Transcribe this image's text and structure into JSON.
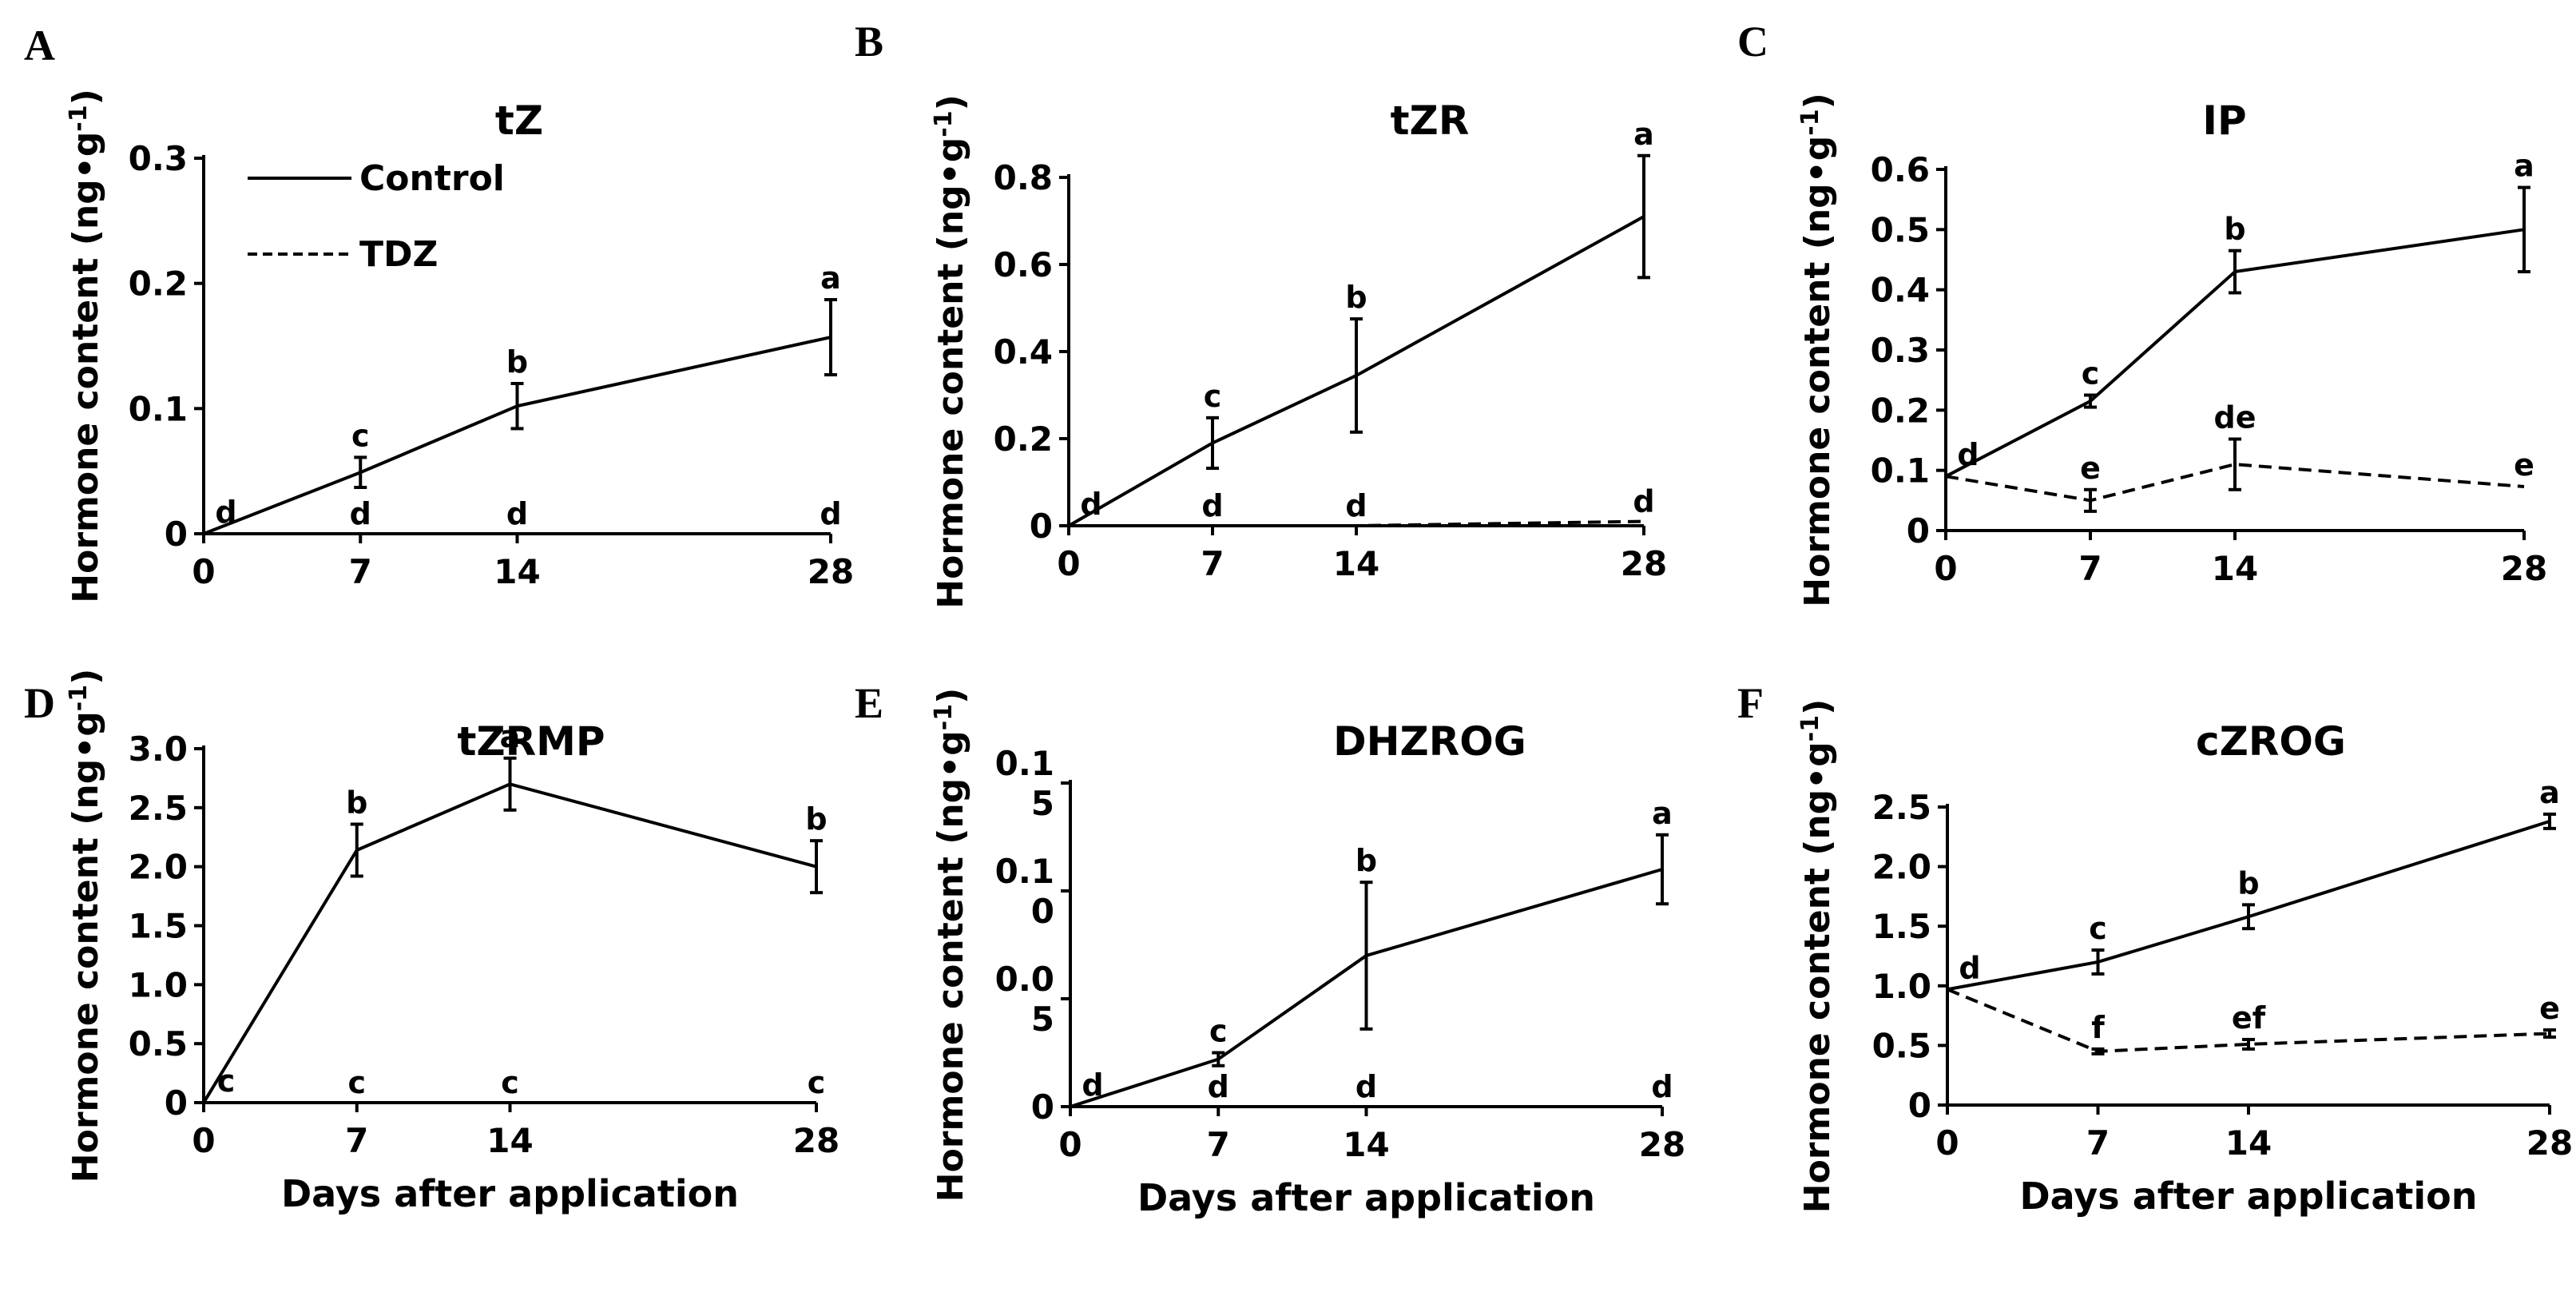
{
  "chart_data": [
    {
      "type": "line",
      "panel": "A",
      "title": "tZ",
      "ylabel": "Hormone content (ng•g⁻¹)",
      "xlabel": "",
      "x": [
        0,
        7,
        14,
        28
      ],
      "xticks": [
        "0",
        "7",
        "14",
        "28"
      ],
      "ylim": [
        0,
        0.3
      ],
      "yticks": [
        "0",
        "0.1",
        "0.2",
        "0.3"
      ],
      "legend": [
        "Control",
        "TDZ"
      ],
      "series": [
        {
          "name": "Control",
          "style": "solid",
          "values": [
            0,
            0.049,
            0.102,
            0.157
          ],
          "errors": [
            0,
            0.012,
            0.018,
            0.03
          ],
          "sig": [
            "d",
            "c",
            "b",
            "a"
          ]
        },
        {
          "name": "TDZ",
          "style": "dashed",
          "values": [
            0,
            0,
            0,
            0
          ],
          "errors": [
            0,
            0,
            0,
            0
          ],
          "sig": [
            "",
            "d",
            "d",
            "d"
          ]
        }
      ]
    },
    {
      "type": "line",
      "panel": "B",
      "title": "tZR",
      "ylabel": "Hormone content (ng•g⁻¹)",
      "xlabel": "",
      "x": [
        0,
        7,
        14,
        28
      ],
      "xticks": [
        "0",
        "7",
        "14",
        "28"
      ],
      "ylim": [
        0,
        0.8
      ],
      "yticks": [
        "0",
        "0.2",
        "0.4",
        "0.6",
        "0.8"
      ],
      "series": [
        {
          "name": "Control",
          "style": "solid",
          "values": [
            0,
            0.19,
            0.345,
            0.71
          ],
          "errors": [
            0,
            0.058,
            0.13,
            0.14
          ],
          "sig": [
            "d",
            "c",
            "b",
            "a"
          ]
        },
        {
          "name": "TDZ",
          "style": "dashed",
          "values": [
            0,
            0,
            0,
            0.01
          ],
          "errors": [
            0,
            0,
            0,
            0
          ],
          "sig": [
            "",
            "d",
            "d",
            "d"
          ]
        }
      ]
    },
    {
      "type": "line",
      "panel": "C",
      "title": "IP",
      "ylabel": "Hormone content (ng•g⁻¹)",
      "xlabel": "",
      "x": [
        0,
        7,
        14,
        28
      ],
      "xticks": [
        "0",
        "7",
        "14",
        "28"
      ],
      "ylim": [
        0,
        0.6
      ],
      "yticks": [
        "0",
        "0.1",
        "0.2",
        "0.3",
        "0.4",
        "0.5",
        "0.6"
      ],
      "series": [
        {
          "name": "Control",
          "style": "solid",
          "values": [
            0.09,
            0.215,
            0.43,
            0.5
          ],
          "errors": [
            0,
            0.01,
            0.035,
            0.07
          ],
          "sig": [
            "d",
            "c",
            "b",
            "a"
          ]
        },
        {
          "name": "TDZ",
          "style": "dashed",
          "values": [
            0.09,
            0.05,
            0.11,
            0.073
          ],
          "errors": [
            0,
            0.018,
            0.042,
            0
          ],
          "sig": [
            "",
            "e",
            "de",
            "e"
          ]
        }
      ]
    },
    {
      "type": "line",
      "panel": "D",
      "title": "tZRMP",
      "ylabel": "Hormone content (ng•g⁻¹)",
      "xlabel": "Days after application",
      "x": [
        0,
        7,
        14,
        28
      ],
      "xticks": [
        "0",
        "7",
        "14",
        "28"
      ],
      "ylim": [
        0,
        3.0
      ],
      "yticks": [
        "0",
        "0.5",
        "1.0",
        "1.5",
        "2.0",
        "2.5",
        "3.0"
      ],
      "series": [
        {
          "name": "Control",
          "style": "solid",
          "values": [
            0,
            2.14,
            2.7,
            2.0
          ],
          "errors": [
            0,
            0.22,
            0.22,
            0.22
          ],
          "sig": [
            "c",
            "b",
            "a",
            "b"
          ]
        },
        {
          "name": "TDZ",
          "style": "dashed",
          "values": [
            0,
            0,
            0,
            0
          ],
          "errors": [
            0,
            0,
            0,
            0
          ],
          "sig": [
            "",
            "c",
            "c",
            "c"
          ]
        }
      ]
    },
    {
      "type": "line",
      "panel": "E",
      "title": "DHZROG",
      "ylabel": "Hormone content (ng•g⁻¹)",
      "xlabel": "Days after application",
      "x": [
        0,
        7,
        14,
        28
      ],
      "xticks": [
        "0",
        "7",
        "14",
        "28"
      ],
      "ylim": [
        0,
        0.15
      ],
      "yticks": [
        "0",
        "0.0\n5",
        "0.1\n0",
        "0.1\n5"
      ],
      "series": [
        {
          "name": "Control",
          "style": "solid",
          "values": [
            0,
            0.022,
            0.07,
            0.11
          ],
          "errors": [
            0,
            0.003,
            0.034,
            0.016
          ],
          "sig": [
            "d",
            "c",
            "b",
            "a"
          ]
        },
        {
          "name": "TDZ",
          "style": "dashed",
          "values": [
            0,
            0,
            0,
            0
          ],
          "errors": [
            0,
            0,
            0,
            0
          ],
          "sig": [
            "",
            "d",
            "d",
            "d"
          ]
        }
      ]
    },
    {
      "type": "line",
      "panel": "F",
      "title": "cZROG",
      "ylabel": "Hormone content (ng•g⁻¹)",
      "xlabel": "Days after application",
      "x": [
        0,
        7,
        14,
        28
      ],
      "xticks": [
        "0",
        "7",
        "14",
        "28"
      ],
      "ylim": [
        0,
        2.5
      ],
      "yticks": [
        "0",
        "0.5",
        "1.0",
        "1.5",
        "2.0",
        "2.5"
      ],
      "series": [
        {
          "name": "Control",
          "style": "solid",
          "values": [
            0.97,
            1.2,
            1.58,
            2.38
          ],
          "errors": [
            0,
            0.1,
            0.1,
            0.06
          ],
          "sig": [
            "d",
            "c",
            "b",
            "a"
          ]
        },
        {
          "name": "TDZ",
          "style": "dashed",
          "values": [
            0.97,
            0.45,
            0.51,
            0.6
          ],
          "errors": [
            0,
            0.02,
            0.04,
            0.03
          ],
          "sig": [
            "",
            "f",
            "ef",
            "e"
          ]
        }
      ]
    }
  ]
}
